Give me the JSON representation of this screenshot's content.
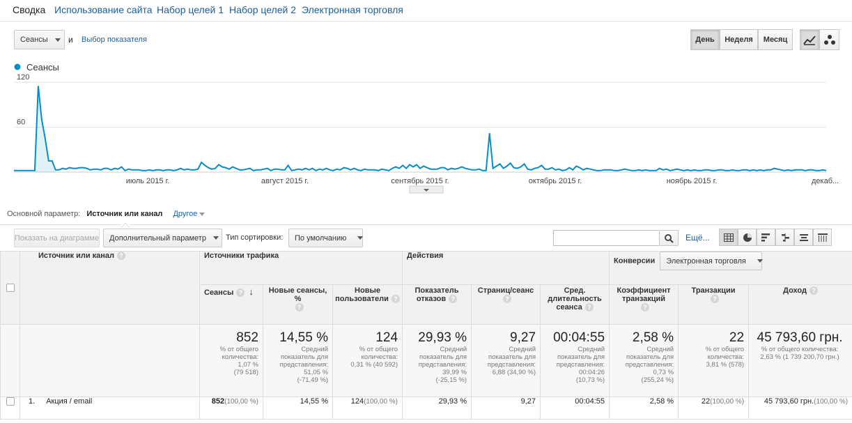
{
  "tabs": [
    "Сводка",
    "Использование сайта",
    "Набор целей 1",
    "Набор целей 2",
    "Электронная торговля"
  ],
  "metric_select": "Сеансы",
  "and_label": "и",
  "choose_metric": "Выбор показателя",
  "period_buttons": [
    "День",
    "Неделя",
    "Месяц"
  ],
  "chart_data": {
    "type": "line",
    "series": [
      {
        "name": "Сеансы",
        "color": "#058dc7",
        "values": [
          2,
          2,
          2,
          2,
          2,
          2,
          2,
          115,
          70,
          45,
          15,
          15,
          3,
          3,
          5,
          4,
          6,
          5,
          5,
          6,
          6,
          5,
          3,
          4,
          4,
          3,
          5,
          5,
          3,
          5,
          4,
          7,
          2,
          4,
          3,
          3,
          3,
          2,
          2,
          3,
          2,
          3,
          3,
          2,
          3,
          3,
          2,
          3,
          5,
          3,
          4,
          3,
          3,
          4,
          13,
          9,
          6,
          4,
          5,
          10,
          7,
          6,
          4,
          7,
          5,
          3,
          3,
          4,
          5,
          2,
          3,
          3,
          4,
          5,
          2,
          4,
          4,
          3,
          3,
          9,
          2,
          3,
          4,
          3,
          5,
          3,
          5,
          2,
          4,
          3,
          5,
          3,
          2,
          4,
          3,
          6,
          5,
          3,
          5,
          3,
          2,
          4,
          3,
          3,
          3,
          2,
          4,
          3,
          2,
          5,
          7,
          5,
          9,
          5,
          10,
          7,
          10,
          5,
          8,
          6,
          4,
          4,
          4,
          6,
          6,
          3,
          5,
          4,
          5,
          7,
          5,
          4,
          3,
          3,
          4,
          2,
          2,
          52,
          5,
          8,
          11,
          5,
          8,
          12,
          6,
          5,
          7,
          11,
          4,
          3,
          5,
          6,
          9,
          4,
          4,
          6,
          3,
          4,
          2,
          3,
          6,
          3,
          8,
          6,
          3,
          5,
          4,
          3,
          2,
          2,
          3,
          3,
          3,
          2,
          2,
          3,
          4,
          3,
          2,
          2,
          3,
          2,
          3,
          2,
          2,
          2,
          5,
          3,
          4,
          2,
          3,
          4,
          3,
          2,
          3,
          2,
          3,
          2,
          2,
          3,
          3,
          2,
          2,
          3,
          3,
          2,
          2,
          3,
          2,
          2,
          3,
          3,
          2,
          3,
          2,
          3,
          2,
          3,
          3,
          5,
          4,
          3,
          2,
          3,
          2,
          3,
          3,
          3,
          2,
          3,
          3,
          2,
          2,
          3,
          2
        ]
      }
    ],
    "y_ticks": [
      "120",
      "60"
    ],
    "ylim": [
      0,
      120
    ],
    "x_tick_labels": [
      "июль 2015 г.",
      "август 2015 г.",
      "сентябрь 2015 г.",
      "октябрь 2015 г.",
      "ноябрь 2015 г.",
      "декаб..."
    ]
  },
  "primary_dim": {
    "label": "Основной параметр:",
    "value": "Источник или канал",
    "other": "Другое"
  },
  "toolbar": {
    "plot_rows": "Показать на диаграмме",
    "secondary": "Дополнительный параметр",
    "sort_label": "Тип сортировки:",
    "sort_value": "По умолчанию",
    "search_value": "",
    "more": "Ещё..."
  },
  "table": {
    "dim_header": "Источник или канал",
    "groups": [
      "Источники трафика",
      "Действия",
      "Конверсии"
    ],
    "conv_select": "Электронная торговля",
    "columns": [
      "Сеансы",
      "Новые сеансы, %",
      "Новые пользователи",
      "Показатель отказов",
      "Страниц/сеанс",
      "Сред. длительность сеанса",
      "Коэффициент транзакций",
      "Транзакции",
      "Доход"
    ],
    "totals": [
      {
        "big": "852",
        "sub": [
          "% от общего",
          "количества:",
          "1,07 %",
          "(79 518)"
        ]
      },
      {
        "big": "14,55 %",
        "sub": [
          "Средний",
          "показатель для",
          "представления:",
          "51,05 %",
          "(-71,49 %)"
        ]
      },
      {
        "big": "124",
        "sub": [
          "% от общего",
          "количества:",
          "0,31 % (40 592)"
        ]
      },
      {
        "big": "29,93 %",
        "sub": [
          "Средний",
          "показатель для",
          "представления:",
          "39,99 %",
          "(-25,15 %)"
        ]
      },
      {
        "big": "9,27",
        "sub": [
          "Средний",
          "показатель для",
          "представления:",
          "6,88 (34,90 %)"
        ]
      },
      {
        "big": "00:04:55",
        "sub": [
          "Средний",
          "показатель для",
          "представления:",
          "00:04:26",
          "(10,73 %)"
        ]
      },
      {
        "big": "2,58 %",
        "sub": [
          "Средний",
          "показатель для",
          "представления:",
          "0,73 %",
          "(255,24 %)"
        ]
      },
      {
        "big": "22",
        "sub": [
          "% от общего",
          "количества:",
          "3,81 % (578)"
        ]
      },
      {
        "big": "45 793,60 грн.",
        "sub": [
          "% от общего количества:",
          "2,63 % (1 739 200,70 грн.)"
        ]
      }
    ],
    "row": {
      "index": "1.",
      "name": "Акция / email",
      "sessions": "852",
      "sessions_pct": "(100,00 %)",
      "new_pct": "14,55 %",
      "new_users": "124",
      "new_users_pct": "(100,00 %)",
      "bounce": "29,93 %",
      "pages": "9,27",
      "duration": "00:04:55",
      "conv": "2,58 %",
      "trans": "22",
      "trans_pct": "(100,00 %)",
      "revenue": "45 793,60 грн.",
      "revenue_pct": "(100,00 %)"
    }
  }
}
